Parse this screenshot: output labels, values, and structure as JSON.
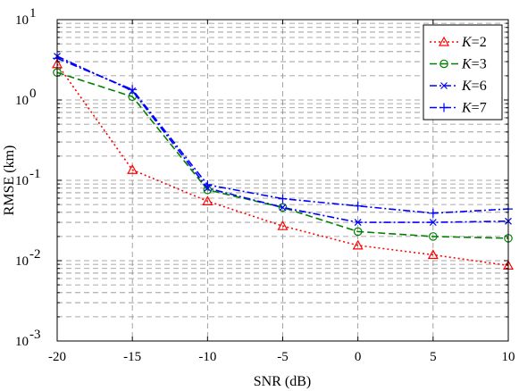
{
  "chart_data": {
    "type": "line",
    "title": "",
    "xlabel": "SNR (dB)",
    "ylabel": "RMSE (km)",
    "xlim": [
      -20,
      10
    ],
    "ylim": [
      0.001,
      10
    ],
    "yscale": "log",
    "grid": true,
    "legend_position": "top-right",
    "x": [
      -20,
      -15,
      -10,
      -5,
      0,
      5,
      10
    ],
    "x_tick_labels": [
      "-20",
      "-15",
      "-10",
      "-5",
      "0",
      "5",
      "10"
    ],
    "y_ticks": [
      {
        "value": 10,
        "base": "10",
        "exp": "1"
      },
      {
        "value": 1,
        "base": "10",
        "exp": "0"
      },
      {
        "value": 0.1,
        "base": "10",
        "exp": "-1"
      },
      {
        "value": 0.01,
        "base": "10",
        "exp": "-2"
      },
      {
        "value": 0.001,
        "base": "10",
        "exp": "-3"
      }
    ],
    "series": [
      {
        "name_var": "K",
        "name_rest": "=2",
        "color": "#ff0000",
        "dash": "2,3",
        "marker": "triangle",
        "values": [
          2.8,
          0.135,
          0.055,
          0.027,
          0.0155,
          0.0118,
          0.0087
        ]
      },
      {
        "name_var": "K",
        "name_rest": "=3",
        "color": "#008000",
        "dash": "8,4",
        "marker": "circle",
        "values": [
          2.2,
          1.1,
          0.076,
          0.046,
          0.023,
          0.02,
          0.019
        ]
      },
      {
        "name_var": "K",
        "name_rest": "=6",
        "color": "#0000ff",
        "dash": "8,3,2,3",
        "marker": "x",
        "values": [
          3.5,
          1.3,
          0.08,
          0.046,
          0.03,
          0.03,
          0.031
        ]
      },
      {
        "name_var": "K",
        "name_rest": "=7",
        "color": "#0000ff",
        "dash": "8,3,2,3",
        "marker": "plus",
        "values": [
          3.3,
          1.35,
          0.088,
          0.059,
          0.048,
          0.039,
          0.044
        ]
      }
    ]
  }
}
